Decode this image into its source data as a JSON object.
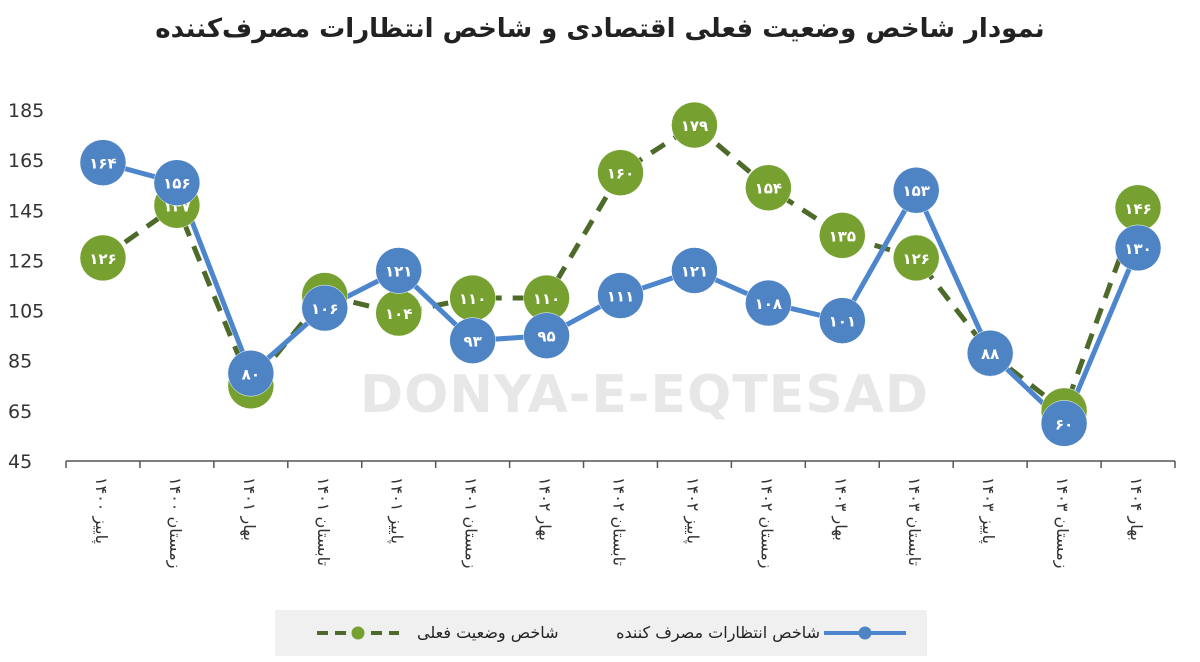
{
  "title": "نمودار شاخص وضعیت فعلی اقتصادی و شاخص انتظارات مصرف‌کننده",
  "watermark": "DONYA-E-EQTESAD",
  "legend": {
    "current": "شاخص وضعیت فعلی",
    "expectations": "شاخص انتظارات مصرف کننده"
  },
  "colors": {
    "current": "#76A130",
    "current_line": "#4D6A2A",
    "expectations": "#4E84C4",
    "expectations_line": "#4E86CE",
    "axis": "#555555"
  },
  "chart_data": {
    "type": "line",
    "title": "نمودار شاخص وضعیت فعلی اقتصادی و شاخص انتظارات مصرف‌کننده",
    "categories": [
      "۱۴۰۰ پاییز",
      "۱۴۰۰ زمستان",
      "۱۴۰۱ بهار",
      "۱۴۰۱ تابستان",
      "۱۴۰۱ پاییز",
      "۱۴۰۱ زمستان",
      "۱۴۰۲ بهار",
      "۱۴۰۲ تابستان",
      "۱۴۰۲ پاییز",
      "۱۴۰۲ زمستان",
      "۱۴۰۳ بهار",
      "۱۴۰۳ تابستان",
      "۱۴۰۳ پاییز",
      "۱۴۰۳ زمستان",
      "۱۴۰۴ بهار"
    ],
    "yticks": [
      "185",
      "165",
      "145",
      "125",
      "105",
      "85",
      "65",
      "45"
    ],
    "ylim": [
      45,
      185
    ],
    "grid": false,
    "legend_position": "bottom",
    "series": [
      {
        "name": "شاخص وضعیت فعلی",
        "style": "dashed",
        "values": [
          126,
          147,
          75,
          111,
          104,
          110,
          110,
          160,
          179,
          154,
          135,
          126,
          88,
          65,
          146
        ],
        "labels": [
          "۱۲۶",
          "۱۴۷",
          "۷۵",
          "۱۱۱",
          "۱۰۴",
          "۱۱۰",
          "۱۱۰",
          "۱۶۰",
          "۱۷۹",
          "۱۵۴",
          "۱۳۵",
          "۱۲۶",
          "۸۸",
          "۶۵",
          "۱۴۶"
        ]
      },
      {
        "name": "شاخص انتظارات مصرف کننده",
        "style": "solid",
        "values": [
          164,
          156,
          80,
          106,
          121,
          93,
          95,
          111,
          121,
          108,
          101,
          153,
          88,
          60,
          130
        ],
        "labels": [
          "۱۶۴",
          "۱۵۶",
          "۸۰",
          "۱۰۶",
          "۱۲۱",
          "۹۳",
          "۹۵",
          "۱۱۱",
          "۱۲۱",
          "۱۰۸",
          "۱۰۱",
          "۱۵۳",
          "۸۸",
          "۶۰",
          "۱۳۰"
        ]
      }
    ]
  }
}
